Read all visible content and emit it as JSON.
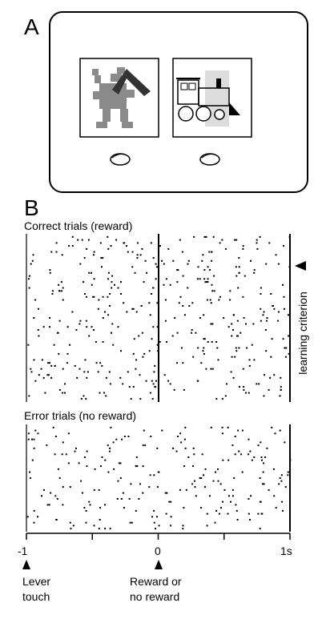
{
  "panel_a": {
    "label": "A"
  },
  "panel_b": {
    "label": "B",
    "correct_title": "Correct trials (reward)",
    "error_title": "Error trials (no reward)",
    "learning_label": "learning criterion"
  },
  "axis": {
    "tick_labels": [
      "-1",
      "0",
      "1s"
    ],
    "lever_label": [
      "Lever",
      "touch"
    ],
    "reward_label": [
      "Reward or",
      "no reward"
    ]
  },
  "chart_data": {
    "type": "scatter",
    "title": "",
    "xlabel": "",
    "xlim": [
      -1,
      1
    ],
    "xticks": [
      -1,
      -0.5,
      0,
      0.5,
      1
    ],
    "panels": [
      {
        "name": "Correct trials (reward)",
        "trials": 55
      },
      {
        "name": "Error trials (no reward)",
        "trials": 35
      }
    ]
  }
}
